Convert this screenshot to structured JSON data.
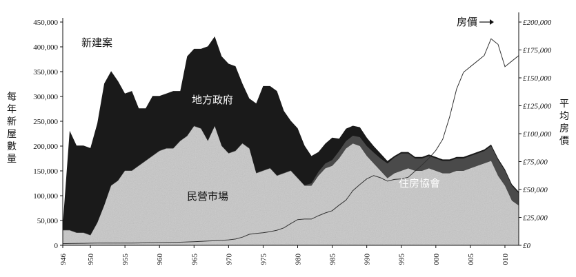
{
  "chart_data": {
    "type": "area",
    "title": "",
    "xlabel": "",
    "ylabel": "每年新屋數量",
    "y2label": "平均房價",
    "xlim": [
      1946,
      2012
    ],
    "ylim": [
      0,
      450000
    ],
    "y2lim": [
      0,
      200000
    ],
    "x_ticks": [
      "946",
      "950",
      "955",
      "960",
      "965",
      "970",
      "975",
      "980",
      "985",
      "990",
      "995",
      "000",
      "005",
      "010"
    ],
    "y_ticks": [
      "0",
      "50,000",
      "100,000",
      "150,000",
      "200,000",
      "250,000",
      "300,000",
      "350,000",
      "400,000",
      "450,000"
    ],
    "y2_ticks": [
      "£0",
      "£25,000",
      "£50,000",
      "£75,000",
      "£100,000",
      "£125,000",
      "£150,000",
      "£175,000",
      "£200,000"
    ],
    "legend": [],
    "x": [
      1946,
      1947,
      1948,
      1949,
      1950,
      1951,
      1952,
      1953,
      1954,
      1955,
      1956,
      1957,
      1958,
      1959,
      1960,
      1961,
      1962,
      1963,
      1964,
      1965,
      1966,
      1967,
      1968,
      1969,
      1970,
      1971,
      1972,
      1973,
      1974,
      1975,
      1976,
      1977,
      1978,
      1979,
      1980,
      1981,
      1982,
      1983,
      1984,
      1985,
      1986,
      1987,
      1988,
      1989,
      1990,
      1991,
      1992,
      1993,
      1994,
      1995,
      1996,
      1997,
      1998,
      1999,
      2000,
      2001,
      2002,
      2003,
      2004,
      2005,
      2006,
      2007,
      2008,
      2009,
      2010,
      2011,
      2012
    ],
    "series": [
      {
        "name": "民營市場",
        "values": [
          30000,
          30000,
          25000,
          25000,
          20000,
          45000,
          80000,
          120000,
          130000,
          150000,
          150000,
          160000,
          170000,
          180000,
          190000,
          195000,
          195000,
          210000,
          220000,
          240000,
          235000,
          210000,
          240000,
          200000,
          185000,
          190000,
          205000,
          195000,
          145000,
          150000,
          155000,
          140000,
          145000,
          150000,
          135000,
          120000,
          120000,
          140000,
          155000,
          160000,
          175000,
          195000,
          205000,
          200000,
          180000,
          165000,
          150000,
          135000,
          145000,
          150000,
          155000,
          150000,
          150000,
          155000,
          150000,
          145000,
          145000,
          150000,
          150000,
          155000,
          160000,
          165000,
          170000,
          140000,
          120000,
          90000,
          80000
        ]
      },
      {
        "name": "住房協會",
        "values": [
          1000,
          1000,
          1000,
          1000,
          1000,
          1000,
          1000,
          1000,
          1000,
          1000,
          1000,
          1000,
          1000,
          1000,
          1000,
          1000,
          1000,
          1000,
          1000,
          1000,
          1000,
          1000,
          1000,
          1000,
          1000,
          1000,
          1000,
          1000,
          1000,
          1000,
          1000,
          1000,
          1000,
          1000,
          1000,
          1000,
          5000,
          8000,
          10000,
          12000,
          15000,
          15000,
          16000,
          18000,
          20000,
          22000,
          25000,
          30000,
          32000,
          35000,
          30000,
          25000,
          25000,
          25000,
          25000,
          25000,
          25000,
          25000,
          25000,
          25000,
          25000,
          25000,
          30000,
          32000,
          30000,
          30000,
          25000
        ]
      },
      {
        "name": "地方政府",
        "values": [
          10000,
          200000,
          175000,
          175000,
          175000,
          200000,
          245000,
          230000,
          200000,
          155000,
          160000,
          115000,
          105000,
          120000,
          110000,
          110000,
          115000,
          100000,
          160000,
          155000,
          160000,
          190000,
          180000,
          180000,
          180000,
          170000,
          120000,
          100000,
          140000,
          170000,
          165000,
          170000,
          125000,
          100000,
          100000,
          80000,
          55000,
          40000,
          40000,
          45000,
          25000,
          25000,
          20000,
          20000,
          17000,
          13000,
          10000,
          5000,
          3000,
          3000,
          3000,
          3000,
          3000,
          3000,
          3000,
          3000,
          3000,
          3000,
          3000,
          3000,
          3000,
          3000,
          3000,
          3000,
          3000,
          3000,
          3000
        ]
      },
      {
        "name": "房價",
        "axis": "right",
        "values": [
          1500,
          1600,
          1700,
          1800,
          1900,
          1950,
          2000,
          2000,
          2000,
          2000,
          2000,
          2100,
          2200,
          2300,
          2400,
          2500,
          2600,
          2800,
          3000,
          3300,
          3600,
          3800,
          4100,
          4400,
          4900,
          5600,
          7300,
          9900,
          10600,
          11300,
          12200,
          13500,
          15600,
          19500,
          23000,
          23500,
          23500,
          26500,
          29000,
          31000,
          36000,
          40500,
          49000,
          54500,
          59500,
          62500,
          60500,
          57500,
          59000,
          59500,
          61000,
          66500,
          72000,
          78000,
          85000,
          95000,
          115000,
          140000,
          155000,
          160000,
          165000,
          170000,
          185000,
          180000,
          160000,
          165000,
          170000
        ]
      }
    ],
    "annotations": {
      "new_build": "新建案",
      "local_gov": "地方政府",
      "private": "民營市場",
      "housing_assoc": "住房協會",
      "price": "房價"
    }
  },
  "colors": {
    "local_gov": "#1a1a1a",
    "housing_assoc": "#4a4a4a",
    "private": "#c8c8c8",
    "price_line": "#333333",
    "axis": "#111111"
  }
}
